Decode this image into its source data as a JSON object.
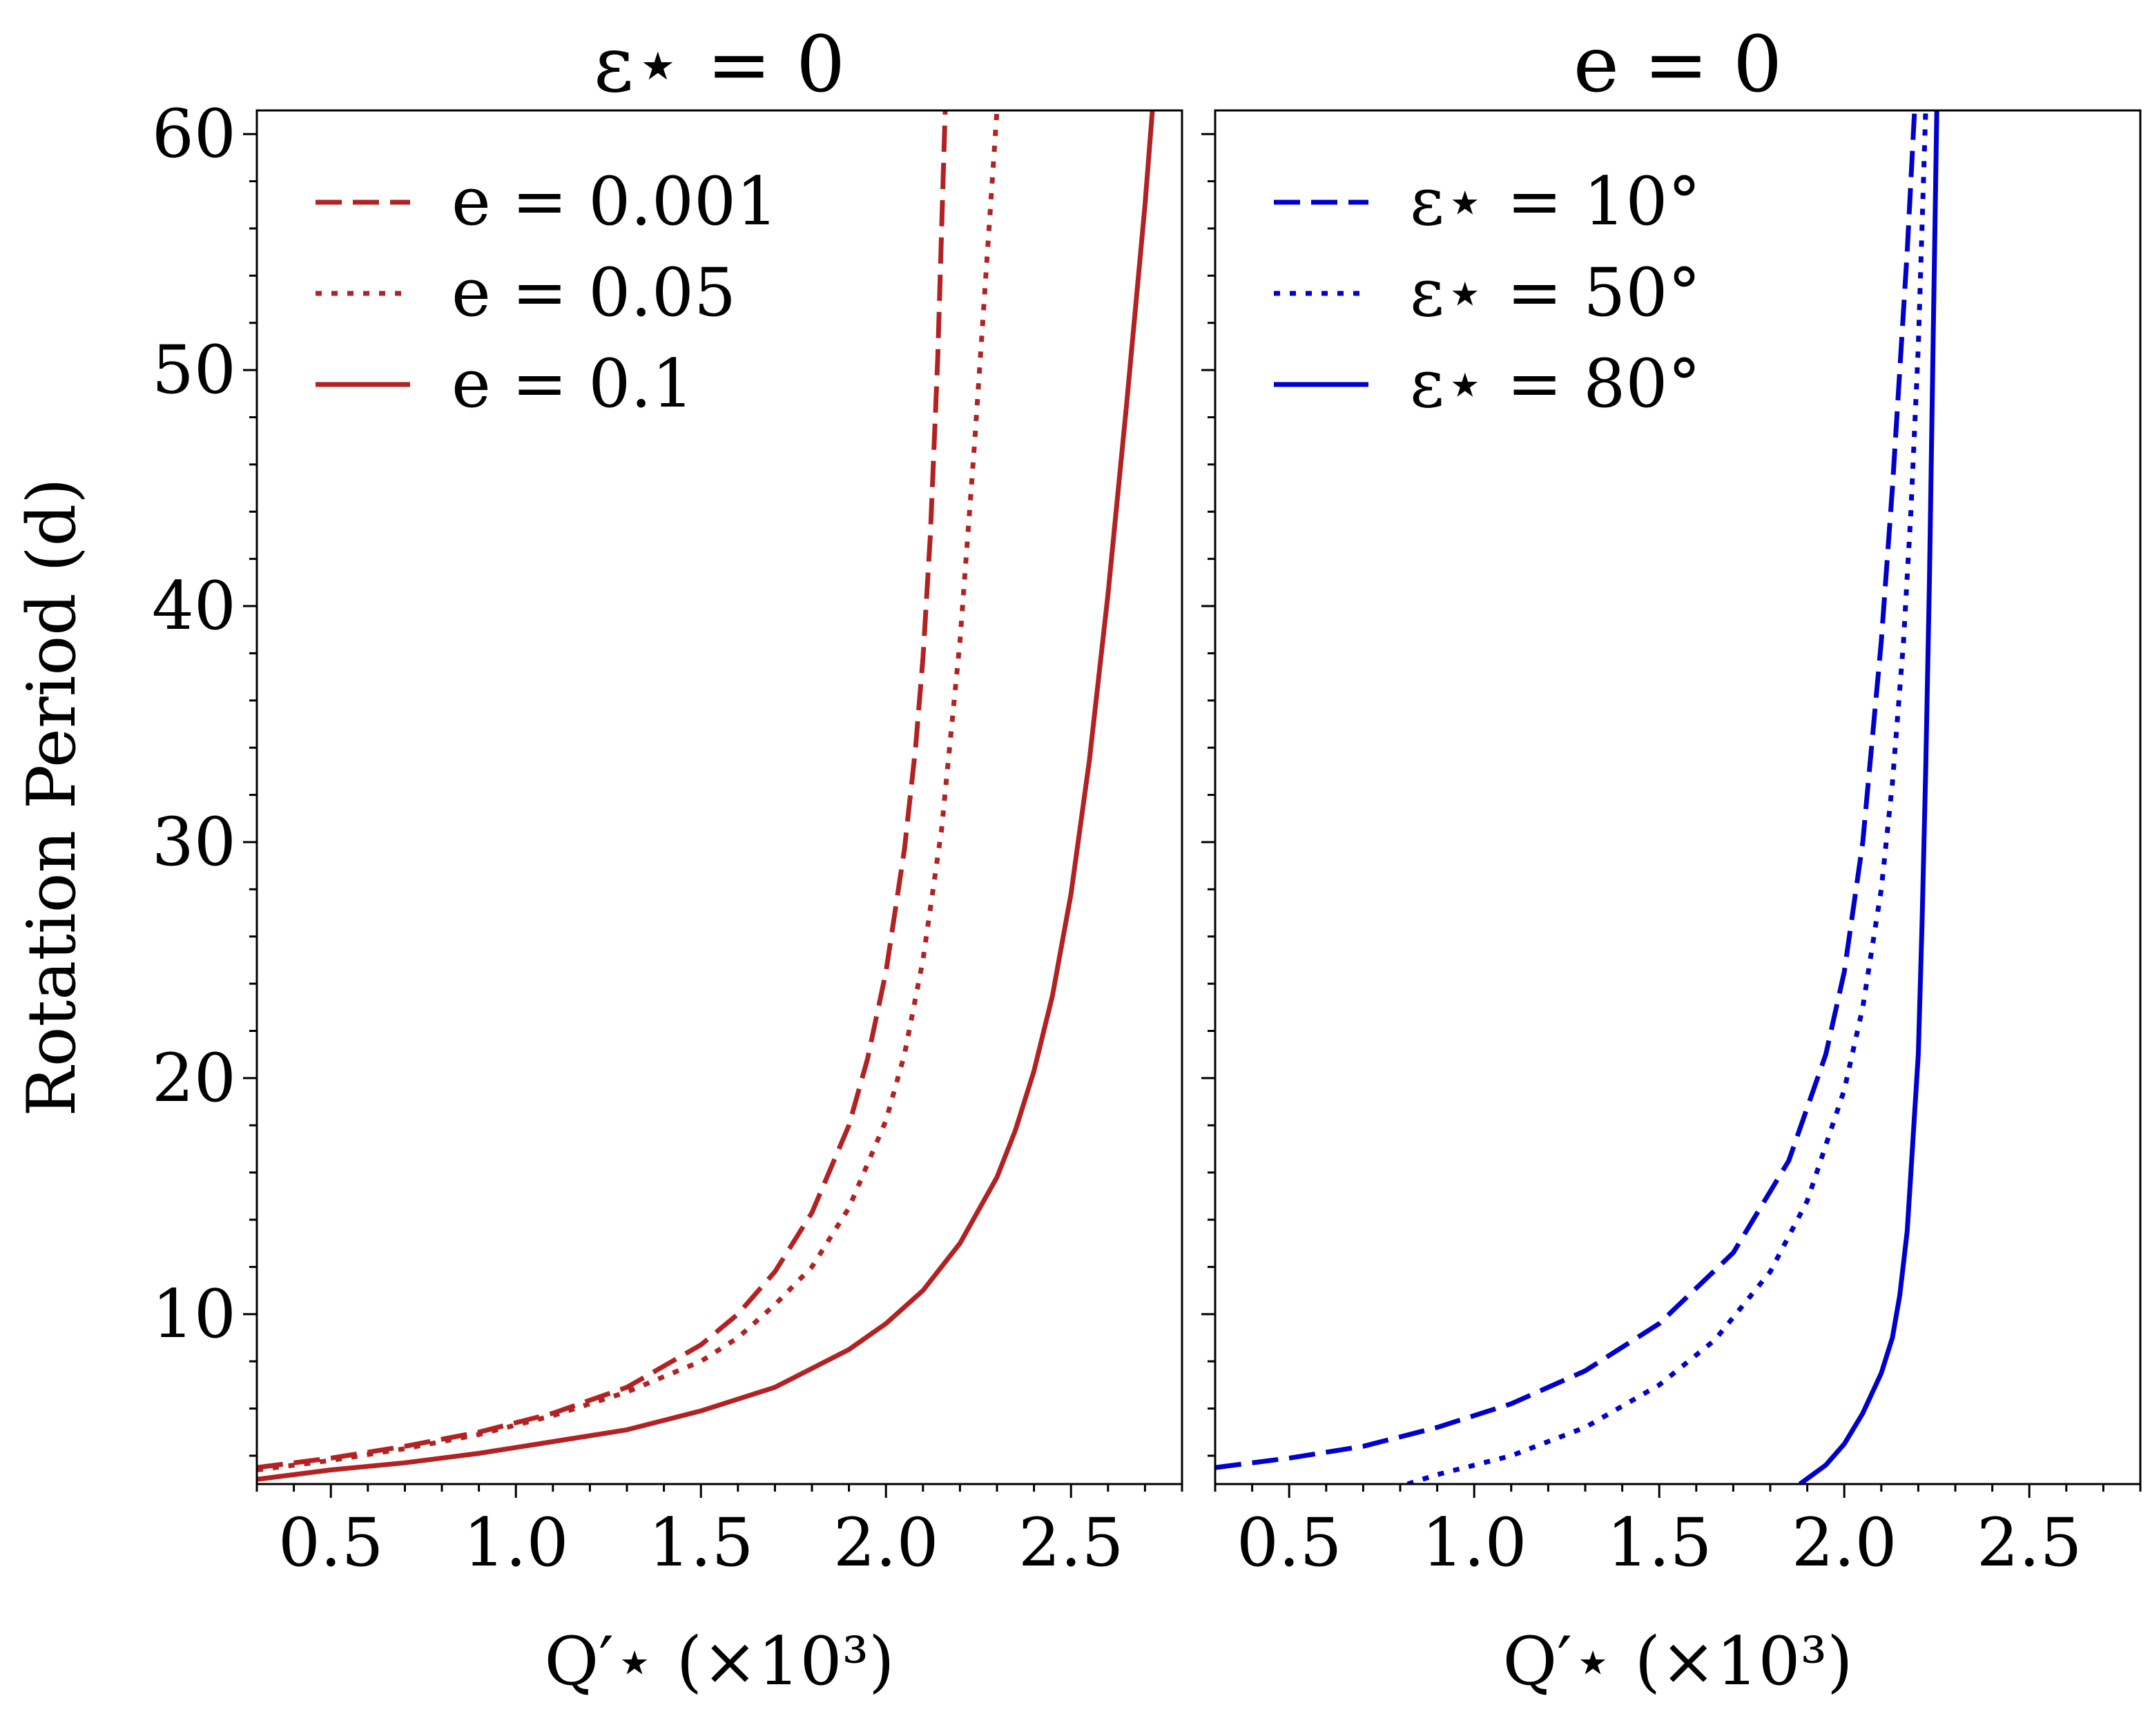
{
  "chart_data": [
    {
      "type": "line",
      "title": "ε⋆ = 0",
      "xlabel": "Q′⋆ (×10³)",
      "ylabel": "Rotation Period (d)",
      "xlim": [
        0.3,
        2.8
      ],
      "ylim": [
        2.8,
        61
      ],
      "xticks": [
        0.5,
        1.0,
        1.5,
        2.0,
        2.5
      ],
      "xtick_labels": [
        "0.5",
        "1.0",
        "1.5",
        "2.0",
        "2.5"
      ],
      "yticks": [
        10,
        20,
        30,
        40,
        50,
        60
      ],
      "ytick_labels": [
        "10",
        "20",
        "30",
        "40",
        "50",
        "60"
      ],
      "legend_position": "top-left",
      "color": "#b22222",
      "series": [
        {
          "name": "e = 0.001",
          "style": "dashed",
          "x": [
            0.3,
            0.5,
            0.7,
            0.9,
            1.1,
            1.3,
            1.5,
            1.6,
            1.7,
            1.8,
            1.9,
            1.95,
            2.0,
            2.05,
            2.08,
            2.1,
            2.12,
            2.14,
            2.16
          ],
          "y": [
            3.5,
            3.9,
            4.4,
            5.0,
            5.8,
            6.9,
            8.7,
            10.0,
            11.8,
            14.3,
            18.0,
            20.8,
            24.5,
            29.7,
            34.0,
            37.8,
            43.0,
            50.5,
            61.0
          ]
        },
        {
          "name": "e = 0.05",
          "style": "dotted",
          "x": [
            0.3,
            0.5,
            0.7,
            0.9,
            1.1,
            1.3,
            1.5,
            1.6,
            1.7,
            1.8,
            1.9,
            2.0,
            2.05,
            2.1,
            2.15,
            2.2,
            2.24,
            2.27,
            2.3
          ],
          "y": [
            3.4,
            3.8,
            4.3,
            4.9,
            5.7,
            6.7,
            8.0,
            9.0,
            10.4,
            12.0,
            14.5,
            18.2,
            21.0,
            25.0,
            30.5,
            38.5,
            47.0,
            54.0,
            61.0
          ]
        },
        {
          "name": "e = 0.1",
          "style": "solid",
          "x": [
            0.3,
            0.5,
            0.7,
            0.9,
            1.1,
            1.3,
            1.5,
            1.7,
            1.9,
            2.0,
            2.1,
            2.2,
            2.3,
            2.35,
            2.4,
            2.45,
            2.5,
            2.55,
            2.6,
            2.65,
            2.7,
            2.72
          ],
          "y": [
            3.0,
            3.4,
            3.7,
            4.1,
            4.6,
            5.1,
            5.9,
            6.9,
            8.5,
            9.6,
            11.0,
            13.0,
            15.8,
            17.8,
            20.3,
            23.5,
            27.8,
            33.5,
            40.5,
            48.5,
            57.0,
            61.0
          ]
        }
      ]
    },
    {
      "type": "line",
      "title": "e = 0",
      "xlabel": "Q′⋆ (×10³)",
      "ylabel": "",
      "xlim": [
        0.3,
        2.8
      ],
      "ylim": [
        2.8,
        61
      ],
      "xticks": [
        0.5,
        1.0,
        1.5,
        2.0,
        2.5
      ],
      "xtick_labels": [
        "0.5",
        "1.0",
        "1.5",
        "2.0",
        "2.5"
      ],
      "yticks": [
        10,
        20,
        30,
        40,
        50,
        60
      ],
      "legend_position": "top-left",
      "color": "#0000cc",
      "series": [
        {
          "name": "ε⋆ = 10°",
          "style": "dashed",
          "x": [
            0.3,
            0.5,
            0.7,
            0.9,
            1.1,
            1.3,
            1.5,
            1.7,
            1.85,
            1.95,
            2.0,
            2.05,
            2.1,
            2.13,
            2.15,
            2.17,
            2.19
          ],
          "y": [
            3.5,
            3.9,
            4.4,
            5.2,
            6.2,
            7.6,
            9.6,
            12.6,
            16.5,
            21.0,
            24.5,
            30.0,
            38.5,
            45.0,
            50.0,
            55.0,
            61.0
          ]
        },
        {
          "name": "ε⋆ = 50°",
          "style": "dotted",
          "x": [
            0.82,
            0.9,
            1.1,
            1.3,
            1.5,
            1.65,
            1.8,
            1.9,
            2.0,
            2.05,
            2.1,
            2.13,
            2.16,
            2.18,
            2.2,
            2.22
          ],
          "y": [
            2.8,
            3.2,
            4.0,
            5.2,
            7.0,
            8.9,
            11.8,
            14.8,
            19.5,
            23.0,
            28.0,
            32.5,
            38.5,
            44.0,
            51.0,
            61.0
          ]
        },
        {
          "name": "ε⋆ = 80°",
          "style": "solid",
          "x": [
            1.88,
            1.95,
            2.0,
            2.05,
            2.1,
            2.13,
            2.15,
            2.17,
            2.18,
            2.2,
            2.21,
            2.22,
            2.23,
            2.24,
            2.25
          ],
          "y": [
            2.8,
            3.6,
            4.5,
            5.8,
            7.5,
            9.0,
            10.8,
            13.5,
            16.0,
            21.0,
            26.5,
            33.0,
            41.0,
            51.0,
            61.0
          ]
        }
      ]
    }
  ]
}
